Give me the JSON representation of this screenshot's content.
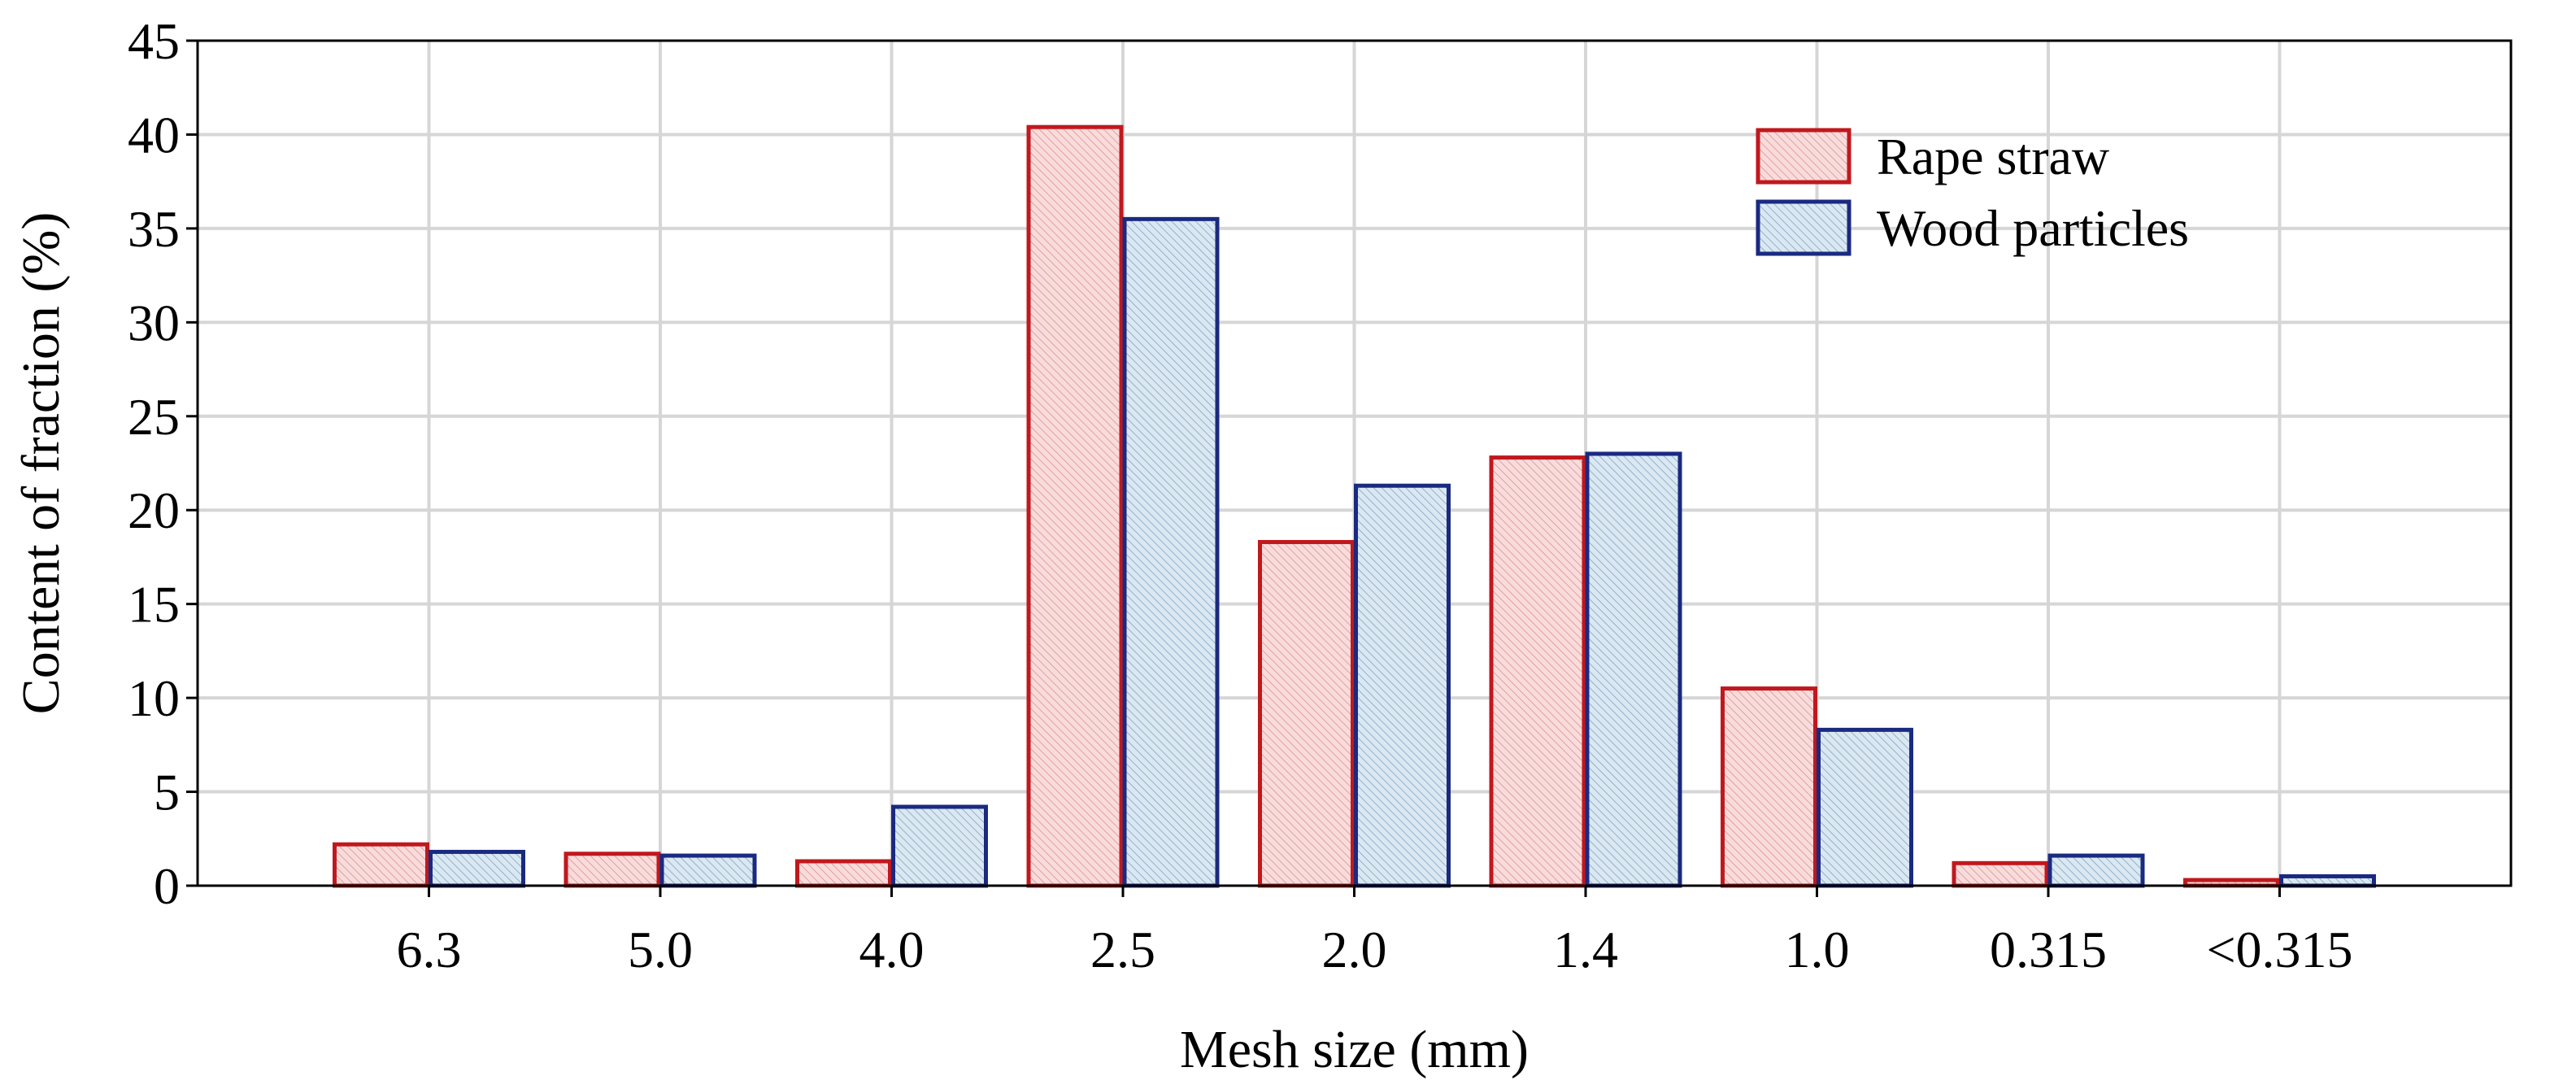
{
  "chart_data": {
    "type": "bar",
    "title": "",
    "xlabel": "Mesh size (mm)",
    "ylabel": "Content of fraction (%)",
    "ylim": [
      0,
      45
    ],
    "yticks": [
      0,
      5,
      10,
      15,
      20,
      25,
      30,
      35,
      40,
      45
    ],
    "grid": true,
    "legend_position": "top-right",
    "categories": [
      "6.3",
      "5.0",
      "4.0",
      "2.5",
      "2.0",
      "1.4",
      "1.0",
      "0.315",
      "<0.315"
    ],
    "series": [
      {
        "name": "Rape straw",
        "color": "#c0181e",
        "fill": "#f6d6d6",
        "values": [
          2.2,
          1.7,
          1.3,
          40.4,
          18.3,
          22.8,
          10.5,
          1.2,
          0.3
        ]
      },
      {
        "name": "Wood particles",
        "color": "#1a2a80",
        "fill": "#d4e4ef",
        "values": [
          1.8,
          1.6,
          4.2,
          35.5,
          21.3,
          23.0,
          8.3,
          1.6,
          0.5
        ]
      }
    ]
  }
}
